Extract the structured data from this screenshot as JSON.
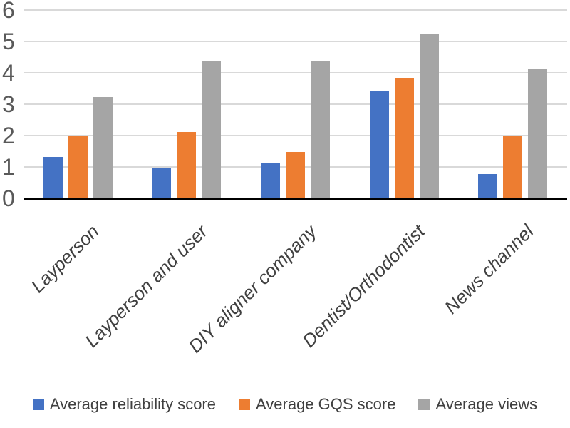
{
  "chart_data": {
    "type": "bar",
    "title": "",
    "xlabel": "",
    "ylabel": "",
    "categories": [
      "Layperson",
      "Layperson and user",
      "DIY aligner company",
      "Dentist/Orthodontist",
      "News channel"
    ],
    "series": [
      {
        "name": "Average reliability score",
        "color": "#4472C4",
        "values": [
          1.3,
          0.95,
          1.1,
          3.4,
          0.75
        ]
      },
      {
        "name": "Average GQS score",
        "color": "#ED7D31",
        "values": [
          1.95,
          2.1,
          1.45,
          3.8,
          1.95
        ]
      },
      {
        "name": "Average views",
        "color": "#A5A5A5",
        "values": [
          3.2,
          4.35,
          4.35,
          5.2,
          4.1
        ]
      }
    ],
    "ylim": [
      0,
      6
    ],
    "yticks": [
      0,
      1,
      2,
      3,
      4,
      5,
      6
    ],
    "grid": true,
    "legend_position": "bottom"
  },
  "styles": {
    "background": "#FFFFFF",
    "gridline_color": "#D9D9D9",
    "axis_color": "#000000",
    "tick_text_color": "#595959",
    "label_text_color": "#404040"
  }
}
